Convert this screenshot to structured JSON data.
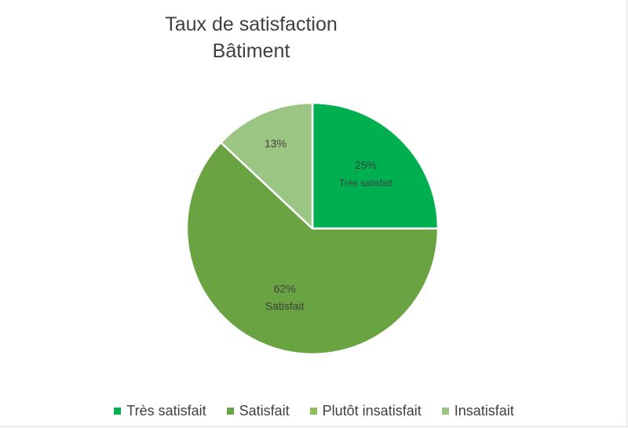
{
  "chart_data": {
    "type": "pie",
    "title": [
      "Taux de satisfaction",
      "Bâtiment"
    ],
    "legend_position": "bottom",
    "slices": [
      {
        "label": "Très satisfait",
        "value": 25,
        "value_label": "25%",
        "show_category_label": true,
        "color": "#00b050"
      },
      {
        "label": "Satisfait",
        "value": 62,
        "value_label": "62%",
        "show_category_label": true,
        "color": "#6aa342"
      },
      {
        "label": "Plutôt insatisfait",
        "value": 0,
        "value_label": "",
        "show_category_label": false,
        "color": "#8fbf5a"
      },
      {
        "label": "Insatisfait",
        "value": 13,
        "value_label": "13%",
        "show_category_label": false,
        "color": "#9bc583"
      }
    ]
  }
}
